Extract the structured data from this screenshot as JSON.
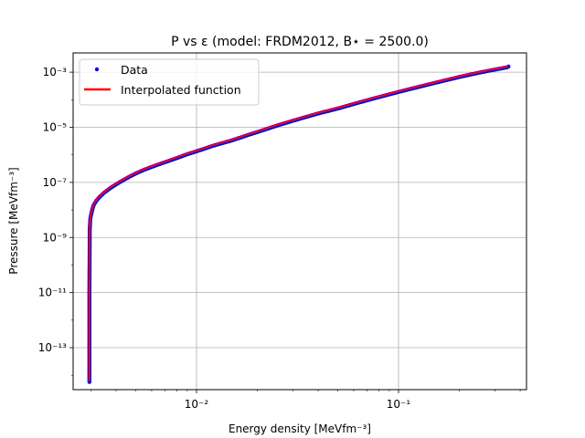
{
  "chart_data": {
    "type": "line",
    "title": "P vs ε (model: FRDM2012, B⋆ = 2500.0)",
    "xlabel": "Energy density [MeVfm⁻³]",
    "ylabel": "Pressure [MeVfm⁻³]",
    "x_scale": "log",
    "y_scale": "log",
    "xlim": [
      0.00245,
      0.43
    ],
    "ylim": [
      3e-15,
      0.005
    ],
    "grid": true,
    "legend_position": "top-left",
    "x_ticks": [
      {
        "value": 0.01,
        "label": "10⁻²"
      },
      {
        "value": 0.1,
        "label": "10⁻¹"
      }
    ],
    "y_ticks": [
      {
        "value": 1e-13,
        "label": "10⁻¹³"
      },
      {
        "value": 1e-11,
        "label": "10⁻¹¹"
      },
      {
        "value": 1e-09,
        "label": "10⁻⁹"
      },
      {
        "value": 1e-07,
        "label": "10⁻⁷"
      },
      {
        "value": 1e-05,
        "label": "10⁻⁵"
      },
      {
        "value": 0.001,
        "label": "10⁻³"
      }
    ],
    "series": [
      {
        "name": "Data",
        "style": "points",
        "color": "#0000ff",
        "x": [
          0.00295,
          0.00295,
          0.00295,
          0.00296,
          0.00296,
          0.00297,
          0.00298,
          0.00302,
          0.00306,
          0.0031,
          0.0032,
          0.0033,
          0.0035,
          0.0038,
          0.0042,
          0.0046,
          0.005,
          0.0055,
          0.006,
          0.007,
          0.008,
          0.009,
          0.01,
          0.012,
          0.015,
          0.018,
          0.02,
          0.025,
          0.03,
          0.035,
          0.04,
          0.05,
          0.06,
          0.07,
          0.08,
          0.1,
          0.12,
          0.15,
          0.18,
          0.2,
          0.25,
          0.3,
          0.35
        ],
        "y": [
          6e-15,
          1e-13,
          1e-11,
          1e-09,
          2e-09,
          3e-09,
          5e-09,
          8e-09,
          1.2e-08,
          1.6e-08,
          2.3e-08,
          3e-08,
          4.5e-08,
          7e-08,
          1.1e-07,
          1.6e-07,
          2.2e-07,
          3e-07,
          3.8e-07,
          5.7e-07,
          8e-07,
          1.1e-06,
          1.4e-06,
          2.2e-06,
          3.5e-06,
          5.5e-06,
          7e-06,
          1.2e-05,
          1.8e-05,
          2.5e-05,
          3.3e-05,
          5e-05,
          7.3e-05,
          0.0001,
          0.00013,
          0.0002,
          0.00028,
          0.00042,
          0.00058,
          0.0007,
          0.001,
          0.0013,
          0.0016
        ]
      },
      {
        "name": "Interpolated function",
        "style": "line",
        "color": "#ff0000",
        "x": [
          0.00295,
          0.00295,
          0.00295,
          0.00296,
          0.00296,
          0.00297,
          0.00298,
          0.00302,
          0.00306,
          0.0031,
          0.0032,
          0.0033,
          0.0035,
          0.0038,
          0.0042,
          0.0046,
          0.005,
          0.0055,
          0.006,
          0.007,
          0.008,
          0.009,
          0.01,
          0.012,
          0.015,
          0.018,
          0.02,
          0.025,
          0.03,
          0.035,
          0.04,
          0.05,
          0.06,
          0.07,
          0.08,
          0.1,
          0.12,
          0.15,
          0.18,
          0.2,
          0.25,
          0.3,
          0.35
        ],
        "y": [
          6e-15,
          1e-13,
          1e-11,
          1e-09,
          2e-09,
          3e-09,
          5e-09,
          8e-09,
          1.2e-08,
          1.6e-08,
          2.3e-08,
          3e-08,
          4.5e-08,
          7e-08,
          1.1e-07,
          1.6e-07,
          2.2e-07,
          3e-07,
          3.8e-07,
          5.7e-07,
          8e-07,
          1.1e-06,
          1.4e-06,
          2.2e-06,
          3.5e-06,
          5.5e-06,
          7e-06,
          1.2e-05,
          1.8e-05,
          2.5e-05,
          3.3e-05,
          5e-05,
          7.3e-05,
          0.0001,
          0.00013,
          0.0002,
          0.00028,
          0.00042,
          0.00058,
          0.0007,
          0.001,
          0.0013,
          0.0016
        ]
      }
    ]
  }
}
